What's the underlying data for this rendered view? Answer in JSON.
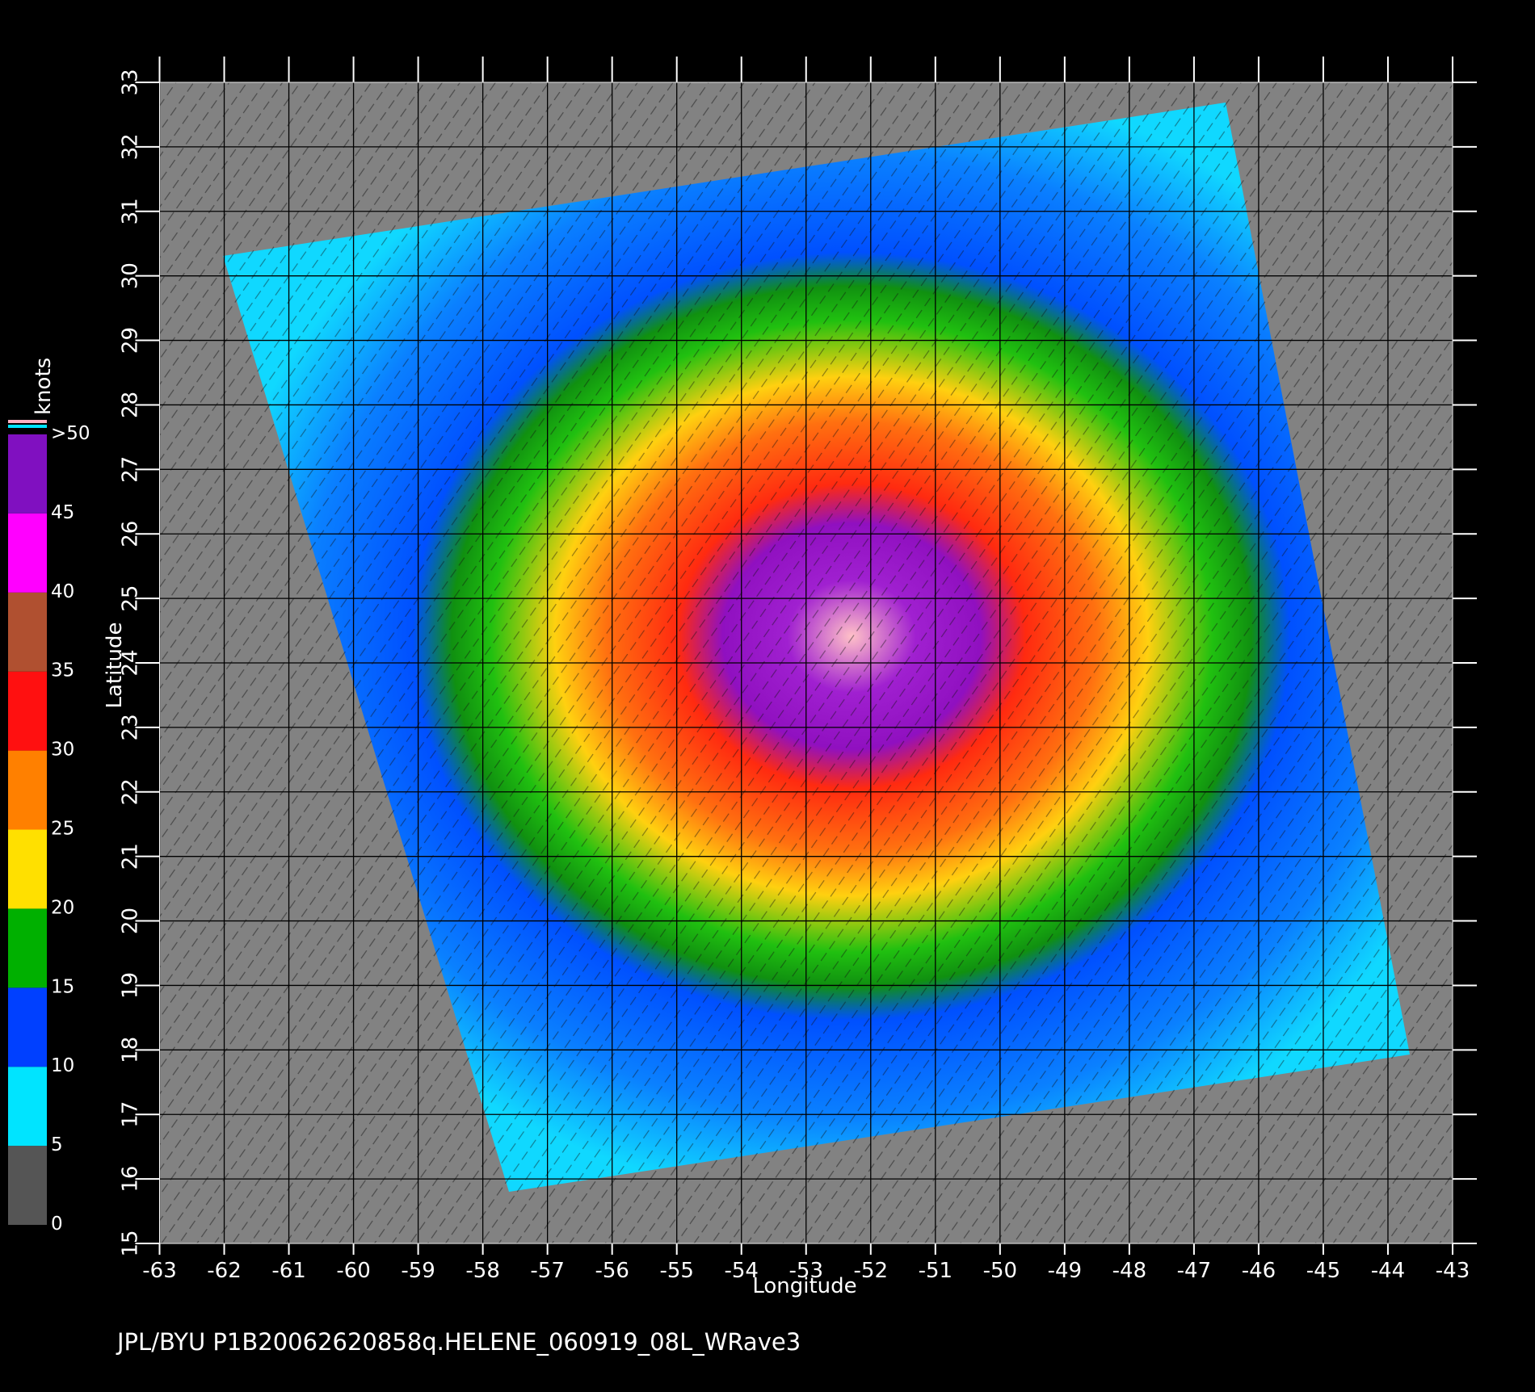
{
  "chart_data": {
    "type": "map",
    "xlabel": "Longitude",
    "ylabel": "Latitude",
    "xlim": [
      -63,
      -43
    ],
    "ylim": [
      15,
      33
    ],
    "xticks": [
      -63,
      -62,
      -61,
      -60,
      -59,
      -58,
      -57,
      -56,
      -55,
      -54,
      -53,
      -52,
      -51,
      -50,
      -49,
      -48,
      -47,
      -46,
      -45,
      -44,
      -43
    ],
    "yticks": [
      15,
      16,
      17,
      18,
      19,
      20,
      21,
      22,
      23,
      24,
      25,
      26,
      27,
      28,
      29,
      30,
      31,
      32,
      33
    ],
    "grid": true,
    "colorbar": {
      "label": "knots",
      "lim": [
        0,
        50
      ],
      "ticks": [
        0,
        5,
        10,
        15,
        20,
        25,
        30,
        35,
        40,
        45,
        {
          "value": 50,
          "label": ">50"
        }
      ],
      "colors": [
        "#555555",
        "#00e4ff",
        "#0040ff",
        "#00b000",
        "#ffe000",
        "#ff8000",
        "#ff1010",
        "#b05030",
        "#ff00ff",
        "#8010c0"
      ]
    },
    "footer": "JPL/BYU  P1B20062620858q.HELENE_060919_08L_WRave3"
  }
}
